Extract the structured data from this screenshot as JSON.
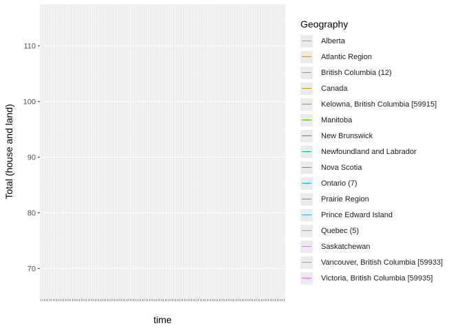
{
  "chart_data": {
    "type": "line",
    "title": "",
    "xlabel": "time",
    "ylabel": "Total (house and land)",
    "ylim": [
      64.5,
      117.5
    ],
    "y_ticks": [
      70,
      80,
      90,
      100,
      110
    ],
    "x_tick_count": 140,
    "grid": true,
    "legend": {
      "title": "Geography",
      "position": "right"
    },
    "series": [
      {
        "name": "Alberta",
        "color": "#F8766D",
        "values": []
      },
      {
        "name": "Atlantic Region",
        "color": "#E7851E",
        "values": []
      },
      {
        "name": "British Columbia (12)",
        "color": "#D09400",
        "values": []
      },
      {
        "name": "Canada",
        "color": "#B2A100",
        "values": []
      },
      {
        "name": "Kelowna, British Columbia [59915]",
        "color": "#89AC00",
        "values": []
      },
      {
        "name": "Manitoba",
        "color": "#45B500",
        "values": []
      },
      {
        "name": "New Brunswick",
        "color": "#00BC51",
        "values": []
      },
      {
        "name": "Newfoundland and Labrador",
        "color": "#00C087",
        "values": []
      },
      {
        "name": "Nova Scotia",
        "color": "#00C0B2",
        "values": []
      },
      {
        "name": "Ontario (7)",
        "color": "#00BCD6",
        "values": []
      },
      {
        "name": "Prairie Region",
        "color": "#00B3F2",
        "values": []
      },
      {
        "name": "Prince Edward Island",
        "color": "#29A3FF",
        "values": []
      },
      {
        "name": "Quebec (5)",
        "color": "#9C8DFF",
        "values": []
      },
      {
        "name": "Saskatchewan",
        "color": "#D277FF",
        "values": []
      },
      {
        "name": "Vancouver, British Columbia [59933]",
        "color": "#F166E8",
        "values": []
      },
      {
        "name": "Victoria, British Columbia [59935]",
        "color": "#FF61C7",
        "values": []
      }
    ]
  }
}
